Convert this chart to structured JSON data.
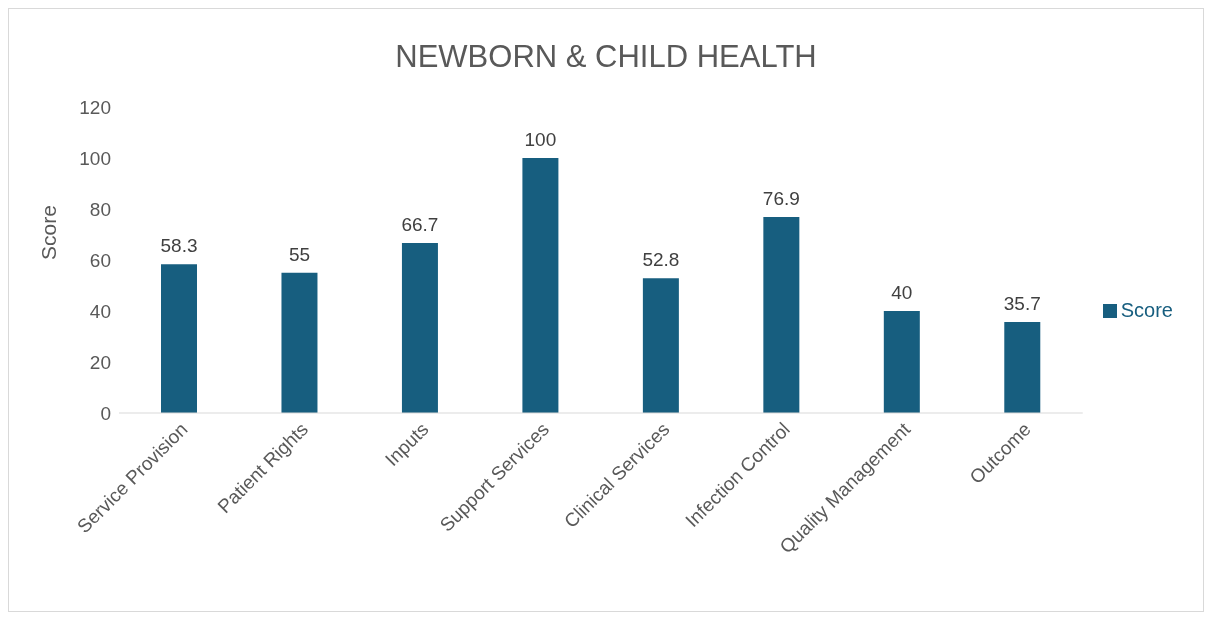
{
  "chart_data": {
    "type": "bar",
    "title": "NEWBORN & CHILD HEALTH",
    "ylabel": "Score",
    "categories": [
      "Service Provision",
      "Patient Rights",
      "Inputs",
      "Support Services",
      "Clinical Services",
      "Infection Control",
      "Quality Management",
      "Outcome"
    ],
    "series": [
      {
        "name": "Score",
        "color": "#175e7f",
        "values": [
          58.3,
          55,
          66.7,
          100,
          52.8,
          76.9,
          40,
          35.7
        ]
      }
    ],
    "ylim": [
      0,
      120
    ],
    "yticks": [
      0,
      20,
      40,
      60,
      80,
      100,
      120
    ],
    "data_labels": true,
    "legend": "right"
  }
}
